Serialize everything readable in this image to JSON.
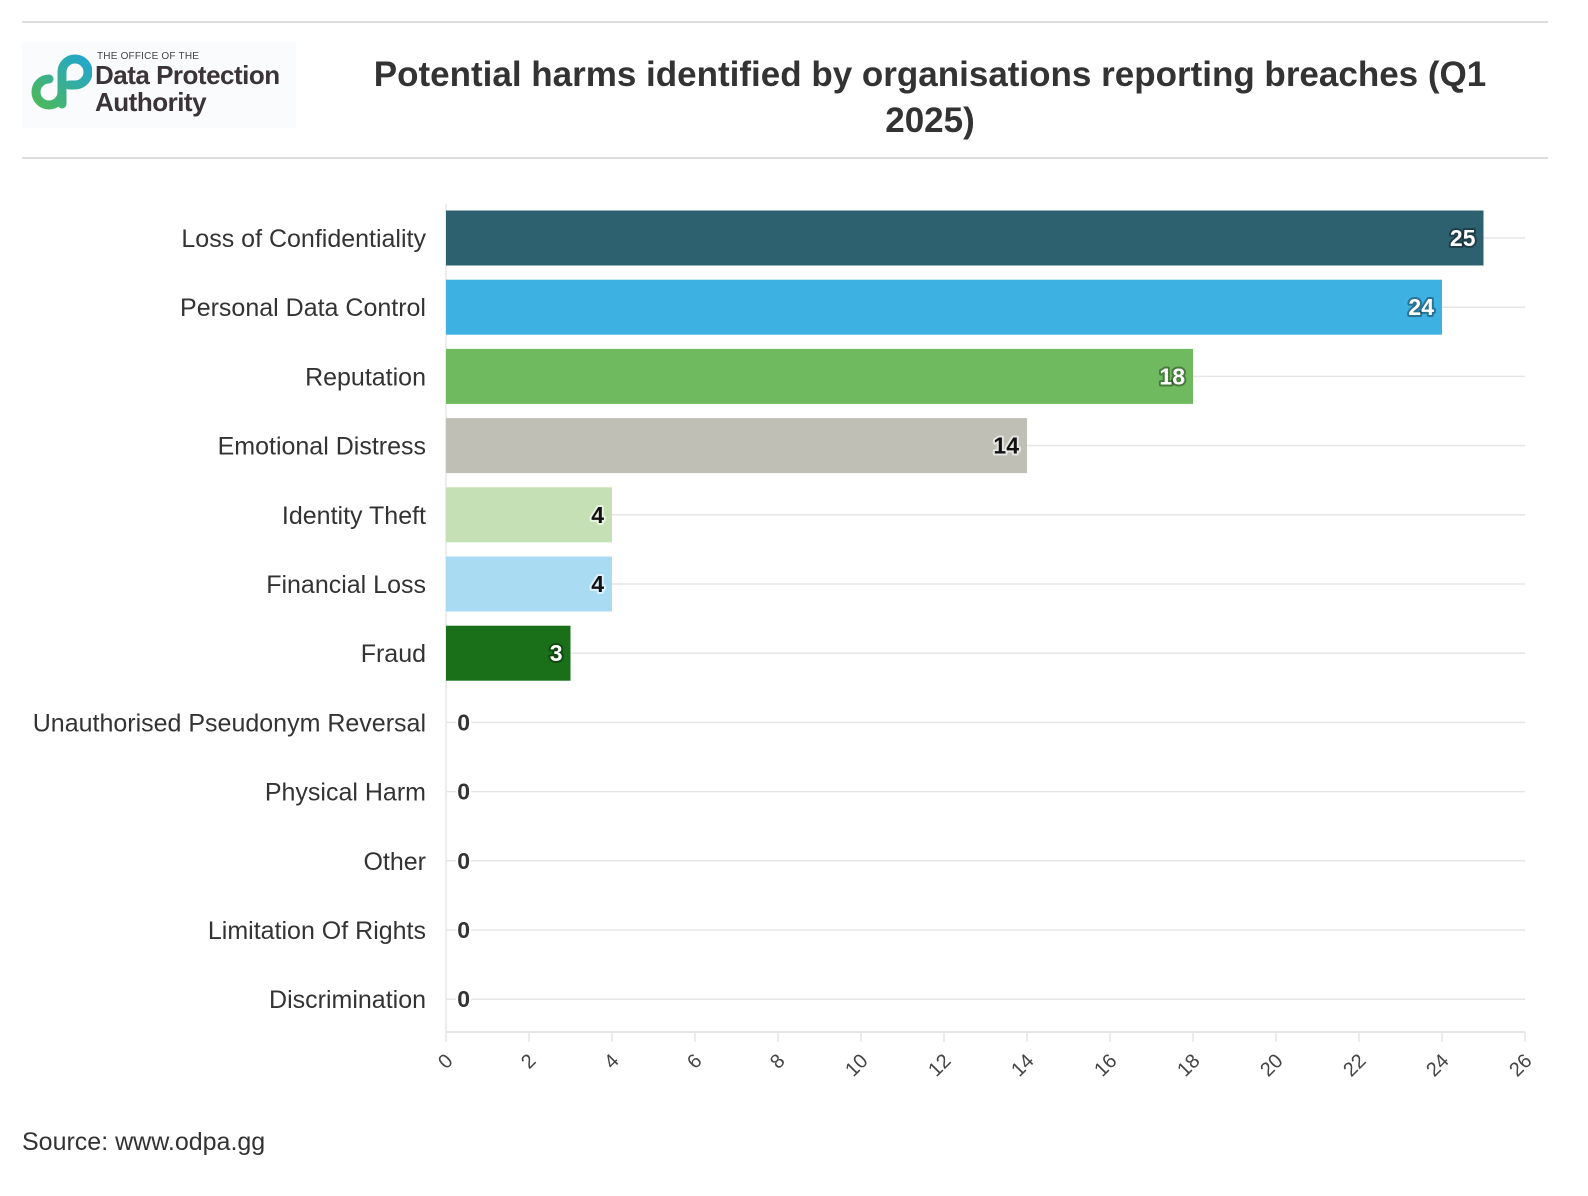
{
  "logo": {
    "line1": "THE OFFICE OF THE",
    "line2": "Data Protection",
    "line3": "Authority"
  },
  "chart_data": {
    "type": "bar",
    "orientation": "horizontal",
    "title": "Potential harms identified by organisations reporting breaches (Q1 2025)",
    "categories": [
      "Loss of Confidentiality",
      "Personal Data Control",
      "Reputation",
      "Emotional Distress",
      "Identity Theft",
      "Financial Loss",
      "Fraud",
      "Unauthorised Pseudonym Reversal",
      "Physical Harm",
      "Other",
      "Limitation Of Rights",
      "Discrimination"
    ],
    "values": [
      25,
      24,
      18,
      14,
      4,
      4,
      3,
      0,
      0,
      0,
      0,
      0
    ],
    "colors": [
      "#2e6170",
      "#3eb1e3",
      "#6fba5f",
      "#bfbfb5",
      "#c5e0b4",
      "#a9dcf2",
      "#1a7019",
      "#999999",
      "#999999",
      "#999999",
      "#999999",
      "#999999"
    ],
    "label_colors": [
      "#ffffff",
      "#ffffff",
      "#ffffff",
      "#111111",
      "#111111",
      "#111111",
      "#ffffff",
      "#333333",
      "#333333",
      "#333333",
      "#333333",
      "#333333"
    ],
    "xlim": [
      0,
      26
    ],
    "xticks": [
      0,
      2,
      4,
      6,
      8,
      10,
      12,
      14,
      16,
      18,
      20,
      22,
      24,
      26
    ],
    "grid": true,
    "xlabel": "",
    "ylabel": ""
  },
  "source": "Source: www.odpa.gg"
}
